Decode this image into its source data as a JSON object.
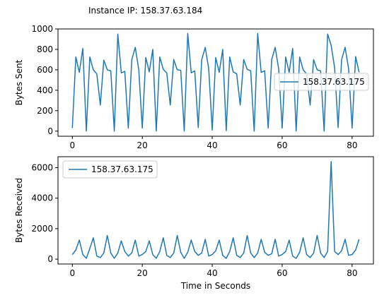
{
  "title": "Instance IP: 158.37.63.184",
  "colors": {
    "line": "#1f77b4",
    "axis": "#000000",
    "background": "#ffffff"
  },
  "chart_data": [
    {
      "type": "line",
      "ylabel": "Bytes Sent",
      "xlim": [
        -4.1,
        86.1
      ],
      "ylim": [
        -50,
        1000
      ],
      "xticks": [
        0,
        20,
        40,
        60,
        80
      ],
      "xtick_labels": [
        "0",
        "20",
        "40",
        "60",
        "80"
      ],
      "yticks": [
        0,
        200,
        400,
        600,
        800,
        1000
      ],
      "ytick_labels": [
        "0",
        "200",
        "400",
        "600",
        "800",
        "1000"
      ],
      "legend_position": "center-right",
      "series": [
        {
          "name": "158.37.63.175",
          "x": [
            0,
            1,
            2,
            3,
            4,
            5,
            6,
            7,
            8,
            9,
            10,
            11,
            12,
            13,
            14,
            15,
            16,
            17,
            18,
            19,
            20,
            21,
            22,
            23,
            24,
            25,
            26,
            27,
            28,
            29,
            30,
            31,
            32,
            33,
            34,
            35,
            36,
            37,
            38,
            39,
            40,
            41,
            42,
            43,
            44,
            45,
            46,
            47,
            48,
            49,
            50,
            51,
            52,
            53,
            54,
            55,
            56,
            57,
            58,
            59,
            60,
            61,
            62,
            63,
            64,
            65,
            66,
            67,
            68,
            69,
            70,
            71,
            72,
            73,
            74,
            75,
            76,
            77,
            78,
            79,
            80,
            81,
            82
          ],
          "y": [
            30,
            725,
            575,
            810,
            0,
            725,
            600,
            560,
            255,
            695,
            600,
            590,
            0,
            950,
            570,
            585,
            30,
            700,
            820,
            600,
            30,
            720,
            580,
            800,
            0,
            725,
            605,
            570,
            255,
            700,
            600,
            595,
            0,
            955,
            570,
            590,
            35,
            700,
            820,
            610,
            10,
            720,
            575,
            800,
            5,
            725,
            580,
            560,
            255,
            700,
            605,
            590,
            0,
            955,
            575,
            590,
            30,
            700,
            820,
            610,
            30,
            725,
            575,
            810,
            0,
            725,
            600,
            560,
            255,
            700,
            600,
            590,
            0,
            950,
            840,
            620,
            35,
            700,
            820,
            610,
            30,
            730,
            575
          ]
        }
      ]
    },
    {
      "type": "line",
      "ylabel": "Bytes Received",
      "xlabel": "Time in Seconds",
      "xlim": [
        -4.1,
        86.1
      ],
      "ylim": [
        -320,
        6720
      ],
      "xticks": [
        0,
        20,
        40,
        60,
        80
      ],
      "xtick_labels": [
        "0",
        "20",
        "40",
        "60",
        "80"
      ],
      "yticks": [
        0,
        2000,
        4000,
        6000
      ],
      "ytick_labels": [
        "0",
        "2000",
        "4000",
        "6000"
      ],
      "legend_position": "upper-left",
      "series": [
        {
          "name": "158.37.63.175",
          "x": [
            0,
            1,
            2,
            3,
            4,
            5,
            6,
            7,
            8,
            9,
            10,
            11,
            12,
            13,
            14,
            15,
            16,
            17,
            18,
            19,
            20,
            21,
            22,
            23,
            24,
            25,
            26,
            27,
            28,
            29,
            30,
            31,
            32,
            33,
            34,
            35,
            36,
            37,
            38,
            39,
            40,
            41,
            42,
            43,
            44,
            45,
            46,
            47,
            48,
            49,
            50,
            51,
            52,
            53,
            54,
            55,
            56,
            57,
            58,
            59,
            60,
            61,
            62,
            63,
            64,
            65,
            66,
            67,
            68,
            69,
            70,
            71,
            72,
            73,
            74,
            75,
            76,
            77,
            78,
            79,
            80,
            81,
            82
          ],
          "y": [
            300,
            600,
            1250,
            300,
            50,
            700,
            1400,
            200,
            100,
            400,
            1550,
            400,
            50,
            400,
            1200,
            500,
            200,
            400,
            1250,
            200,
            300,
            500,
            1200,
            300,
            50,
            500,
            1400,
            250,
            100,
            400,
            1550,
            450,
            50,
            450,
            1250,
            500,
            250,
            400,
            1300,
            200,
            300,
            550,
            1250,
            250,
            50,
            500,
            1400,
            250,
            100,
            400,
            1550,
            400,
            100,
            400,
            1300,
            450,
            250,
            350,
            1300,
            200,
            300,
            500,
            1250,
            200,
            50,
            450,
            1400,
            300,
            100,
            400,
            1550,
            400,
            100,
            500,
            6400,
            500,
            300,
            550,
            1300,
            250,
            300,
            600,
            1300
          ]
        }
      ]
    }
  ]
}
